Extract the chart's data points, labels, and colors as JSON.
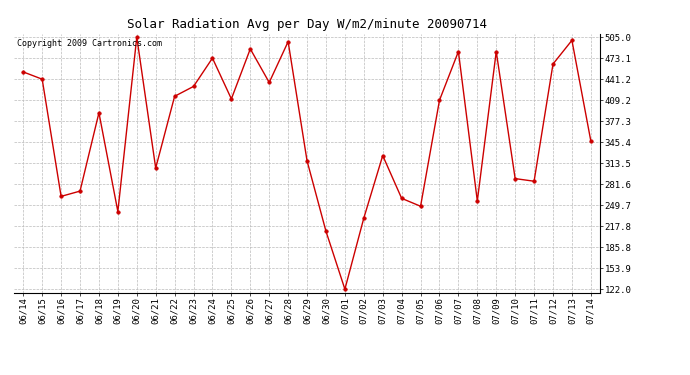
{
  "title": "Solar Radiation Avg per Day W/m2/minute 20090714",
  "copyright_text": "Copyright 2009 Cartronics.com",
  "labels": [
    "06/14",
    "06/15",
    "06/16",
    "06/17",
    "06/18",
    "06/19",
    "06/20",
    "06/21",
    "06/22",
    "06/23",
    "06/24",
    "06/25",
    "06/26",
    "06/27",
    "06/28",
    "06/29",
    "06/30",
    "07/01",
    "07/02",
    "07/03",
    "07/04",
    "07/05",
    "07/06",
    "07/07",
    "07/08",
    "07/09",
    "07/10",
    "07/11",
    "07/12",
    "07/13",
    "07/14"
  ],
  "values": [
    452,
    441,
    263,
    271,
    390,
    240,
    505,
    306,
    415,
    430,
    473,
    411,
    487,
    436,
    498,
    317,
    210,
    122,
    230,
    325,
    260,
    248,
    409,
    483,
    256,
    483,
    290,
    286,
    464,
    500,
    347
  ],
  "line_color": "#cc0000",
  "marker_color": "#cc0000",
  "bg_color": "#ffffff",
  "grid_color": "#bbbbbb",
  "ymin": 122.0,
  "ymax": 505.0,
  "yticks": [
    122.0,
    153.9,
    185.8,
    217.8,
    249.7,
    281.6,
    313.5,
    345.4,
    377.3,
    409.2,
    441.2,
    473.1,
    505.0
  ],
  "ytick_labels": [
    "122.0",
    "153.9",
    "185.8",
    "217.8",
    "249.7",
    "281.6",
    "313.5",
    "345.4",
    "377.3",
    "409.2",
    "441.2",
    "473.1",
    "505.0"
  ],
  "title_fontsize": 9,
  "tick_fontsize": 6.5,
  "copyright_fontsize": 6
}
